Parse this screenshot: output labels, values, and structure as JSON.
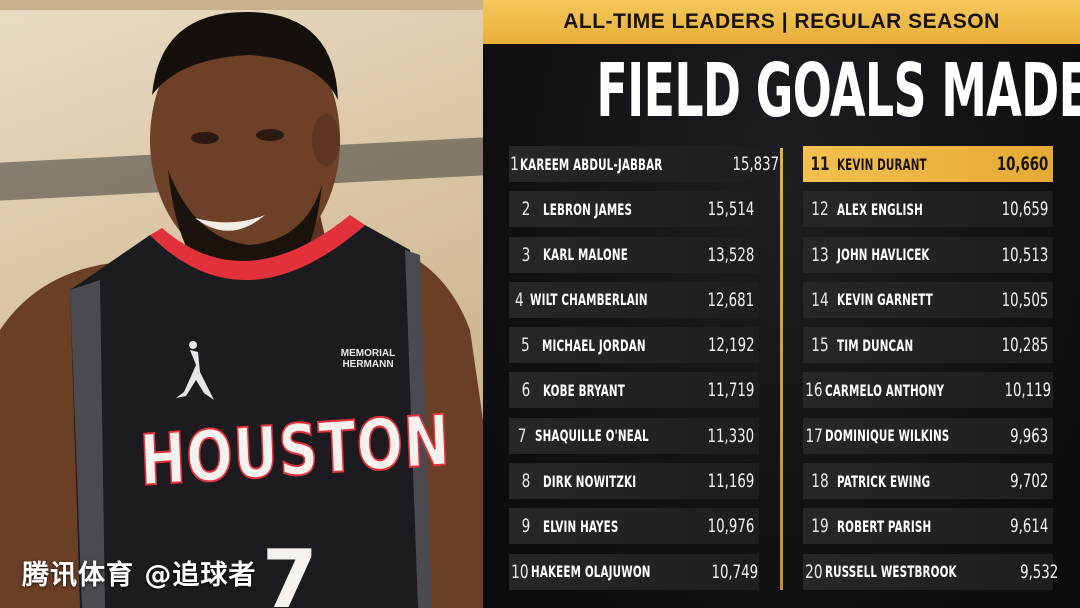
{
  "header": {
    "banner": "ALL-TIME LEADERS | REGULAR SEASON",
    "title": "FIELD GOALS MADE"
  },
  "photo": {
    "jersey_text": "HOUSTON",
    "jersey_number": "7",
    "patch_line1": "MEMORIAL",
    "patch_line2": "HERMANN"
  },
  "watermark": "腾讯体育 @追球者",
  "leaders_left": [
    {
      "rank": "1",
      "name": "KAREEM ABDUL-JABBAR",
      "value": "15,837"
    },
    {
      "rank": "2",
      "name": "LEBRON JAMES",
      "value": "15,514"
    },
    {
      "rank": "3",
      "name": "KARL MALONE",
      "value": "13,528"
    },
    {
      "rank": "4",
      "name": "WILT CHAMBERLAIN",
      "value": "12,681"
    },
    {
      "rank": "5",
      "name": "MICHAEL JORDAN",
      "value": "12,192"
    },
    {
      "rank": "6",
      "name": "KOBE BRYANT",
      "value": "11,719"
    },
    {
      "rank": "7",
      "name": "SHAQUILLE O'NEAL",
      "value": "11,330"
    },
    {
      "rank": "8",
      "name": "DIRK NOWITZKI",
      "value": "11,169"
    },
    {
      "rank": "9",
      "name": "ELVIN HAYES",
      "value": "10,976"
    },
    {
      "rank": "10",
      "name": "HAKEEM OLAJUWON",
      "value": "10,749"
    }
  ],
  "leaders_right": [
    {
      "rank": "11",
      "name": "KEVIN DURANT",
      "value": "10,660"
    },
    {
      "rank": "12",
      "name": "ALEX ENGLISH",
      "value": "10,659"
    },
    {
      "rank": "13",
      "name": "JOHN HAVLICEK",
      "value": "10,513"
    },
    {
      "rank": "14",
      "name": "KEVIN GARNETT",
      "value": "10,505"
    },
    {
      "rank": "15",
      "name": "TIM DUNCAN",
      "value": "10,285"
    },
    {
      "rank": "16",
      "name": "CARMELO ANTHONY",
      "value": "10,119"
    },
    {
      "rank": "17",
      "name": "DOMINIQUE WILKINS",
      "value": "9,963"
    },
    {
      "rank": "18",
      "name": "PATRICK EWING",
      "value": "9,702"
    },
    {
      "rank": "19",
      "name": "ROBERT PARISH",
      "value": "9,614"
    },
    {
      "rank": "20",
      "name": "RUSSELL WESTBROOK",
      "value": "9,532"
    }
  ],
  "highlight_rank": "11",
  "colors": {
    "accent_gold": "#f0bb48",
    "panel_bg": "#111114",
    "jersey_red": "#e2313b",
    "jersey_black": "#1c1c20"
  }
}
